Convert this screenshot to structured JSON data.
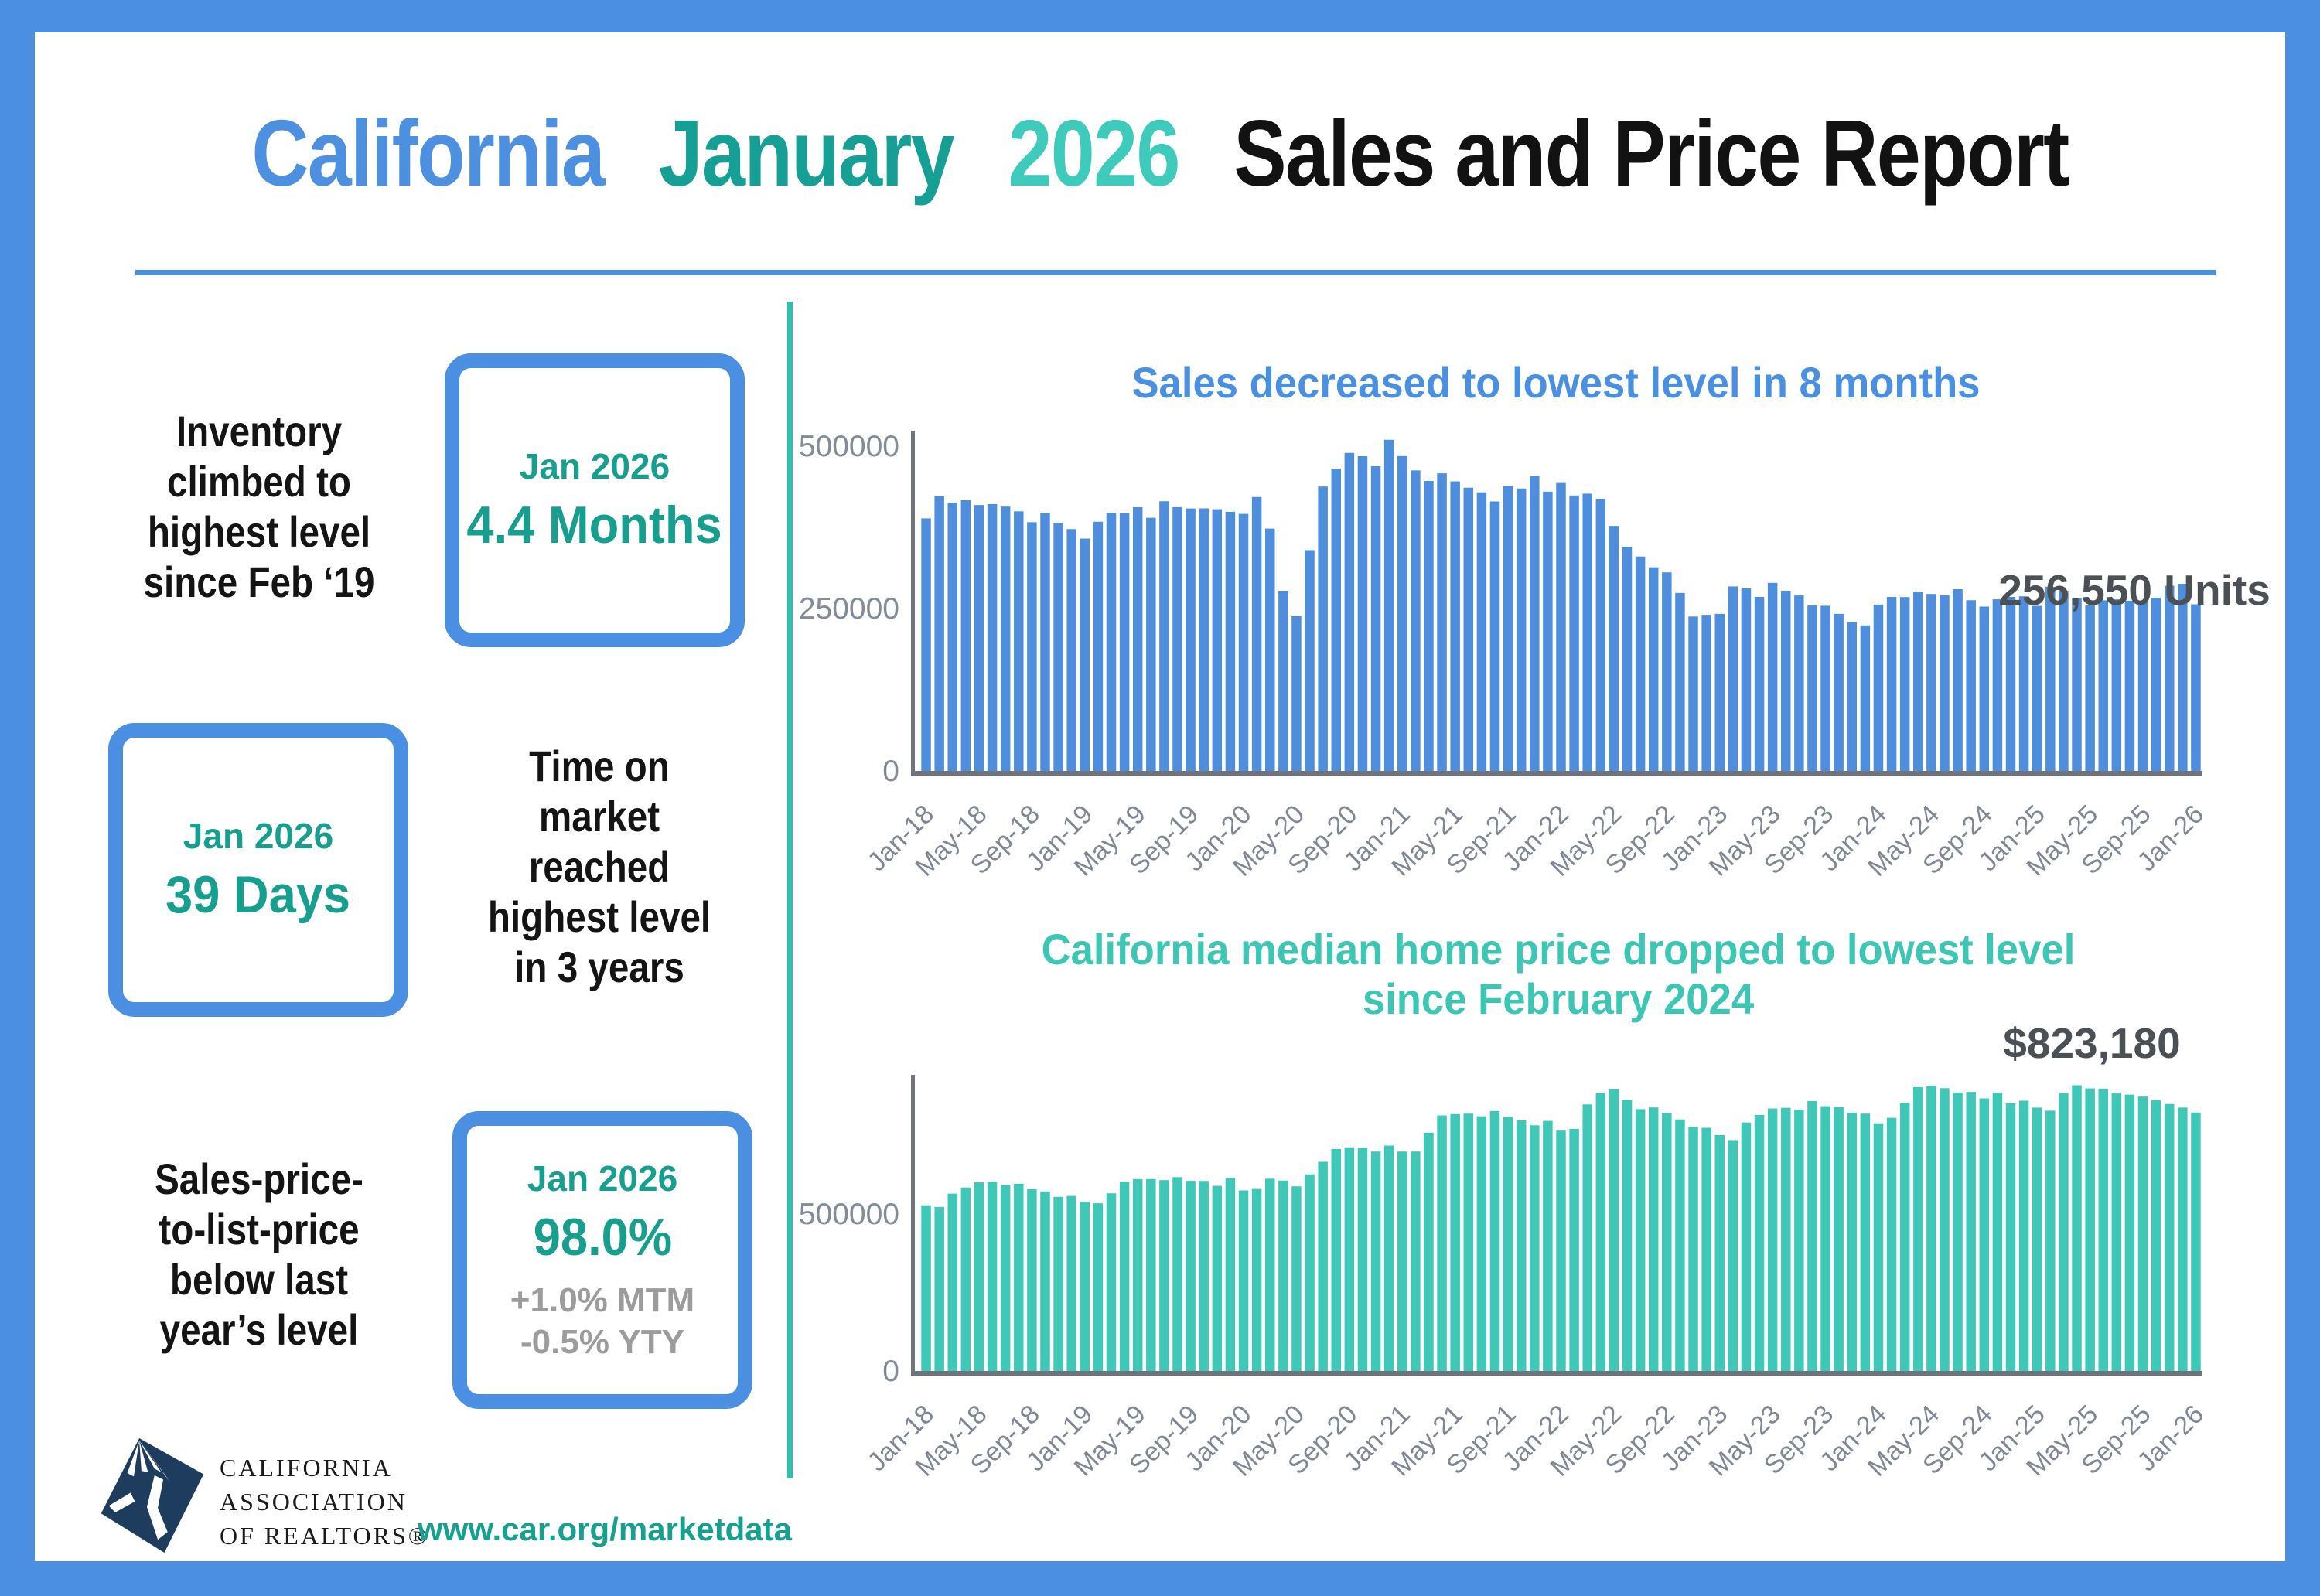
{
  "colors": {
    "accent_blue": "#4a8fe2",
    "accent_teal": "#2ebfae",
    "stat_teal": "#169f8e",
    "sub_gray": "#9c9c9c"
  },
  "header": {
    "part1": "California",
    "part2": "January",
    "part3": "2026",
    "part4": "Sales and Price Report"
  },
  "stats": [
    {
      "lines": [
        "Inventory",
        "climbed to",
        "highest level",
        "since Feb ‘19"
      ],
      "box": {
        "period": "Jan 2026",
        "value": "4.4 Months"
      }
    },
    {
      "lines": [
        "Time on",
        "market",
        "reached",
        "highest level",
        "in 3 years"
      ],
      "box": {
        "period": "Jan 2026",
        "value": "39 Days"
      }
    },
    {
      "lines": [
        "Sales-price-",
        "to-list-price",
        "below last",
        "year’s level"
      ],
      "box": {
        "period": "Jan 2026",
        "value": "98.0%",
        "sub1": "+1.0% MTM",
        "sub2": "-0.5% YTY"
      }
    }
  ],
  "footer": {
    "logo_line1": "CALIFORNIA",
    "logo_line2": "ASSOCIATION",
    "logo_line3": "OF REALTORS®",
    "url": "www.car.org/marketdata"
  },
  "chart_data": [
    {
      "type": "bar",
      "title": "Sales decreased to lowest level in 8 months",
      "annotation": "256,550 Units",
      "bar_color": "#4e8edd",
      "title_color": "#4a90e2",
      "ylim": [
        0,
        527000
      ],
      "yticks": [
        0,
        250000,
        500000
      ],
      "xtick_every": 4,
      "legend": "none",
      "grid": "off",
      "categories": [
        "Jan-18",
        "Feb-18",
        "Mar-18",
        "Apr-18",
        "May-18",
        "Jun-18",
        "Jul-18",
        "Aug-18",
        "Sep-18",
        "Oct-18",
        "Nov-18",
        "Dec-18",
        "Jan-19",
        "Feb-19",
        "Mar-19",
        "Apr-19",
        "May-19",
        "Jun-19",
        "Jul-19",
        "Aug-19",
        "Sep-19",
        "Oct-19",
        "Nov-19",
        "Dec-19",
        "Jan-20",
        "Feb-20",
        "Mar-20",
        "Apr-20",
        "May-20",
        "Jun-20",
        "Jul-20",
        "Aug-20",
        "Sep-20",
        "Oct-20",
        "Nov-20",
        "Dec-20",
        "Jan-21",
        "Feb-21",
        "Mar-21",
        "Apr-21",
        "May-21",
        "Jun-21",
        "Jul-21",
        "Aug-21",
        "Sep-21",
        "Oct-21",
        "Nov-21",
        "Dec-21",
        "Jan-22",
        "Feb-22",
        "Mar-22",
        "Apr-22",
        "May-22",
        "Jun-22",
        "Jul-22",
        "Aug-22",
        "Sep-22",
        "Oct-22",
        "Nov-22",
        "Dec-22",
        "Jan-23",
        "Feb-23",
        "Mar-23",
        "Apr-23",
        "May-23",
        "Jun-23",
        "Jul-23",
        "Aug-23",
        "Sep-23",
        "Oct-23",
        "Nov-23",
        "Dec-23",
        "Jan-24",
        "Feb-24",
        "Mar-24",
        "Apr-24",
        "May-24",
        "Jun-24",
        "Jul-24",
        "Aug-24",
        "Sep-24",
        "Oct-24",
        "Nov-24",
        "Dec-24",
        "Jan-25",
        "Feb-25",
        "Mar-25",
        "Apr-25",
        "May-25",
        "Jun-25",
        "Jul-25",
        "Aug-25",
        "Sep-25",
        "Oct-25",
        "Nov-25",
        "Dec-25",
        "Jan-26"
      ],
      "values": [
        388800,
        422900,
        412900,
        416800,
        409300,
        410800,
        406900,
        399600,
        382900,
        397100,
        381400,
        372300,
        357700,
        383600,
        397100,
        396800,
        406000,
        389700,
        415200,
        406100,
        404000,
        404200,
        402900,
        398900,
        395700,
        421700,
        373100,
        277400,
        238100,
        339900,
        437900,
        465200,
        489600,
        484500,
        469000,
        509800,
        484700,
        462700,
        446400,
        458200,
        445800,
        436000,
        428900,
        414900,
        438800,
        434800,
        454200,
        429900,
        444500,
        424000,
        426900,
        419000,
        377200,
        345000,
        330100,
        313500,
        305700,
        274000,
        237700,
        240300,
        241800,
        284000,
        281100,
        267900,
        289500,
        277500,
        270100,
        254700,
        254300,
        241800,
        229000,
        224000,
        256100,
        267800,
        267600,
        275500,
        272400,
        270200,
        279800,
        262800,
        253000,
        264200,
        267800,
        268800,
        254100,
        283500,
        277400,
        265900,
        254800,
        262600,
        264100,
        262000,
        259500,
        266500,
        285000,
        288000,
        256550
      ]
    },
    {
      "type": "bar",
      "title": "California median home price dropped to lowest level",
      "title_line2": "since February 2024",
      "annotation": "$823,180",
      "bar_color": "#3fc8b7",
      "title_color": "#3cc6b4",
      "ylim": [
        0,
        943000
      ],
      "yticks": [
        0,
        500000
      ],
      "xtick_every": 4,
      "legend": "none",
      "grid": "off",
      "categories": [
        "Jan-18",
        "Feb-18",
        "Mar-18",
        "Apr-18",
        "May-18",
        "Jun-18",
        "Jul-18",
        "Aug-18",
        "Sep-18",
        "Oct-18",
        "Nov-18",
        "Dec-18",
        "Jan-19",
        "Feb-19",
        "Mar-19",
        "Apr-19",
        "May-19",
        "Jun-19",
        "Jul-19",
        "Aug-19",
        "Sep-19",
        "Oct-19",
        "Nov-19",
        "Dec-19",
        "Jan-20",
        "Feb-20",
        "Mar-20",
        "Apr-20",
        "May-20",
        "Jun-20",
        "Jul-20",
        "Aug-20",
        "Sep-20",
        "Oct-20",
        "Nov-20",
        "Dec-20",
        "Jan-21",
        "Feb-21",
        "Mar-21",
        "Apr-21",
        "May-21",
        "Jun-21",
        "Jul-21",
        "Aug-21",
        "Sep-21",
        "Oct-21",
        "Nov-21",
        "Dec-21",
        "Jan-22",
        "Feb-22",
        "Mar-22",
        "Apr-22",
        "May-22",
        "Jun-22",
        "Jul-22",
        "Aug-22",
        "Sep-22",
        "Oct-22",
        "Nov-22",
        "Dec-22",
        "Jan-23",
        "Feb-23",
        "Mar-23",
        "Apr-23",
        "May-23",
        "Jun-23",
        "Jul-23",
        "Aug-23",
        "Sep-23",
        "Oct-23",
        "Nov-23",
        "Dec-23",
        "Jan-24",
        "Feb-24",
        "Mar-24",
        "Apr-24",
        "May-24",
        "Jun-24",
        "Jul-24",
        "Aug-24",
        "Sep-24",
        "Oct-24",
        "Nov-24",
        "Dec-24",
        "Jan-25",
        "Feb-25",
        "Mar-25",
        "Apr-25",
        "May-25",
        "Jun-25",
        "Jul-25",
        "Aug-25",
        "Sep-25",
        "Oct-25",
        "Nov-25",
        "Dec-25",
        "Jan-26"
      ],
      "values": [
        527800,
        522440,
        564830,
        584460,
        600860,
        602760,
        591460,
        596410,
        578850,
        572000,
        554760,
        557600,
        538690,
        534140,
        565880,
        602920,
        611190,
        611420,
        607990,
        617410,
        605680,
        605280,
        589770,
        615090,
        575160,
        579770,
        612440,
        606410,
        588070,
        626170,
        666320,
        706900,
        712430,
        711300,
        699000,
        717930,
        699000,
        699000,
        758990,
        813980,
        818260,
        819630,
        811170,
        827940,
        808890,
        798440,
        782480,
        796570,
        765580,
        771270,
        849080,
        884890,
        898980,
        863790,
        833910,
        839460,
        821680,
        801190,
        777500,
        774580,
        751330,
        735480,
        791490,
        815340,
        836110,
        838260,
        832340,
        859800,
        843340,
        840360,
        822200,
        819740,
        788940,
        806490,
        854490,
        904210,
        908040,
        900720,
        886560,
        888740,
        868150,
        886560,
        852880,
        861020,
        838850,
        829060,
        884350,
        910160,
        900170,
        899560,
        884050,
        880250,
        873990,
        862750,
        850300,
        839000,
        823180
      ]
    }
  ]
}
